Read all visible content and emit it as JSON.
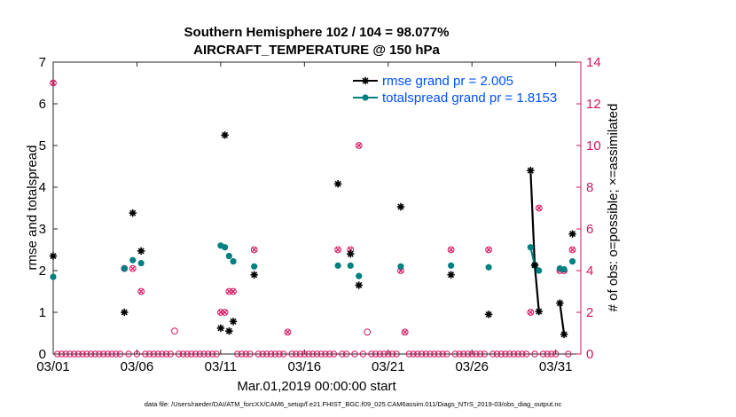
{
  "colors": {
    "rmse": "#000000",
    "spread": "#008080",
    "obs": "#d6125f",
    "legend_text": "#0051ff",
    "axis": "#262626"
  },
  "chart_data": {
    "type": "scatter",
    "title": "Southern Hemisphere 102 / 104 = 98.077%",
    "subtitle": "AIRCRAFT_TEMPERATURE @ 150 hPa",
    "xlabel": "Mar.01,2019 00:00:00 start",
    "ylabel": "rmse and totalspread",
    "y2label": "# of obs: o=possible; ×=assimilated",
    "footer": "data file: /Users/raeder/DAI/ATM_forcXX/CAM6_setup/f.e21.FHIST_BGC.f09_025.CAM6assim.011/Diags_NTrS_2019-03/obs_diag_output.nc",
    "xlim": [
      0,
      31.5
    ],
    "ylim": [
      0,
      7
    ],
    "y2lim": [
      0,
      14
    ],
    "xticks": [
      0,
      5,
      10,
      15,
      20,
      25,
      30
    ],
    "xticklabels": [
      "03/01",
      "03/06",
      "03/11",
      "03/16",
      "03/21",
      "03/26",
      "03/31"
    ],
    "yticks": [
      "0",
      "1",
      "2",
      "3",
      "4",
      "5",
      "6",
      "7"
    ],
    "y2ticks": [
      "0",
      "2",
      "4",
      "6",
      "8",
      "10",
      "12",
      "14"
    ],
    "legend": {
      "location": "top-right",
      "entries": [
        "rmse grand pr = 2.005",
        "totalspread grand pr = 1.8153"
      ]
    },
    "series": [
      {
        "name": "rmse",
        "points": [
          [
            0,
            2.35
          ],
          [
            4.25,
            1.0
          ],
          [
            4.75,
            3.38
          ],
          [
            5.25,
            2.47
          ],
          [
            10.0,
            0.62
          ],
          [
            10.25,
            5.25
          ],
          [
            10.5,
            0.55
          ],
          [
            10.75,
            0.78
          ],
          [
            12.0,
            1.9
          ],
          [
            17.0,
            4.08
          ],
          [
            17.75,
            2.4
          ],
          [
            18.25,
            1.65
          ],
          [
            20.75,
            3.53
          ],
          [
            23.75,
            1.9
          ],
          [
            26.0,
            0.95
          ],
          [
            28.5,
            4.4
          ],
          [
            28.75,
            2.13
          ],
          [
            29.0,
            1.02
          ],
          [
            30.25,
            1.22
          ],
          [
            30.5,
            0.47
          ],
          [
            31.0,
            2.88
          ]
        ],
        "connected": [
          [
            28.5,
            29.0
          ],
          [
            30.25,
            30.5
          ]
        ]
      },
      {
        "name": "totalspread",
        "points": [
          [
            0,
            1.85
          ],
          [
            4.25,
            2.05
          ],
          [
            4.75,
            2.25
          ],
          [
            5.25,
            2.18
          ],
          [
            10.0,
            2.6
          ],
          [
            10.25,
            2.56
          ],
          [
            10.5,
            2.35
          ],
          [
            10.75,
            2.22
          ],
          [
            12.0,
            2.1
          ],
          [
            17.0,
            2.12
          ],
          [
            17.75,
            2.12
          ],
          [
            18.25,
            1.87
          ],
          [
            20.75,
            2.1
          ],
          [
            23.75,
            2.12
          ],
          [
            26.0,
            2.08
          ],
          [
            28.5,
            2.56
          ],
          [
            28.75,
            2.13
          ],
          [
            29.0,
            2.0
          ],
          [
            30.25,
            2.05
          ],
          [
            30.5,
            2.03
          ],
          [
            31.0,
            2.22
          ]
        ],
        "connected": [
          [
            28.5,
            29.0
          ],
          [
            30.25,
            30.5
          ]
        ]
      },
      {
        "name": "obs_possible",
        "points": [
          [
            0,
            13
          ],
          [
            4.25,
            4.1
          ],
          [
            4.75,
            4.1
          ],
          [
            5.25,
            3.0
          ],
          [
            7.25,
            1.1
          ],
          [
            10.0,
            2.0
          ],
          [
            10.25,
            2.0
          ],
          [
            10.5,
            3.0
          ],
          [
            10.75,
            3.0
          ],
          [
            12.0,
            5.0
          ],
          [
            14.0,
            1.05
          ],
          [
            17.0,
            5.0
          ],
          [
            17.75,
            5.0
          ],
          [
            18.25,
            10.0
          ],
          [
            18.75,
            1.05
          ],
          [
            20.75,
            4.0
          ],
          [
            21.0,
            1.05
          ],
          [
            23.75,
            5.0
          ],
          [
            26.0,
            5.0
          ],
          [
            28.5,
            2.0
          ],
          [
            29.0,
            7.0
          ],
          [
            30.25,
            4.0
          ],
          [
            30.5,
            4.0
          ],
          [
            31.0,
            5.0
          ]
        ]
      },
      {
        "name": "obs_assimilated",
        "points": [
          [
            0,
            13
          ],
          [
            4.25,
            4.1
          ],
          [
            4.75,
            4.1
          ],
          [
            5.25,
            3.0
          ],
          [
            10.0,
            2.0
          ],
          [
            10.25,
            2.0
          ],
          [
            10.5,
            3.0
          ],
          [
            10.75,
            3.0
          ],
          [
            12.0,
            5.0
          ],
          [
            14.0,
            1.05
          ],
          [
            17.0,
            5.0
          ],
          [
            17.75,
            5.0
          ],
          [
            18.25,
            10.0
          ],
          [
            20.75,
            4.0
          ],
          [
            21.0,
            1.05
          ],
          [
            23.75,
            5.0
          ],
          [
            26.0,
            5.0
          ],
          [
            28.5,
            2.0
          ],
          [
            29.0,
            7.0
          ],
          [
            30.25,
            4.0
          ],
          [
            30.5,
            4.0
          ],
          [
            31.0,
            5.0
          ]
        ]
      }
    ]
  }
}
